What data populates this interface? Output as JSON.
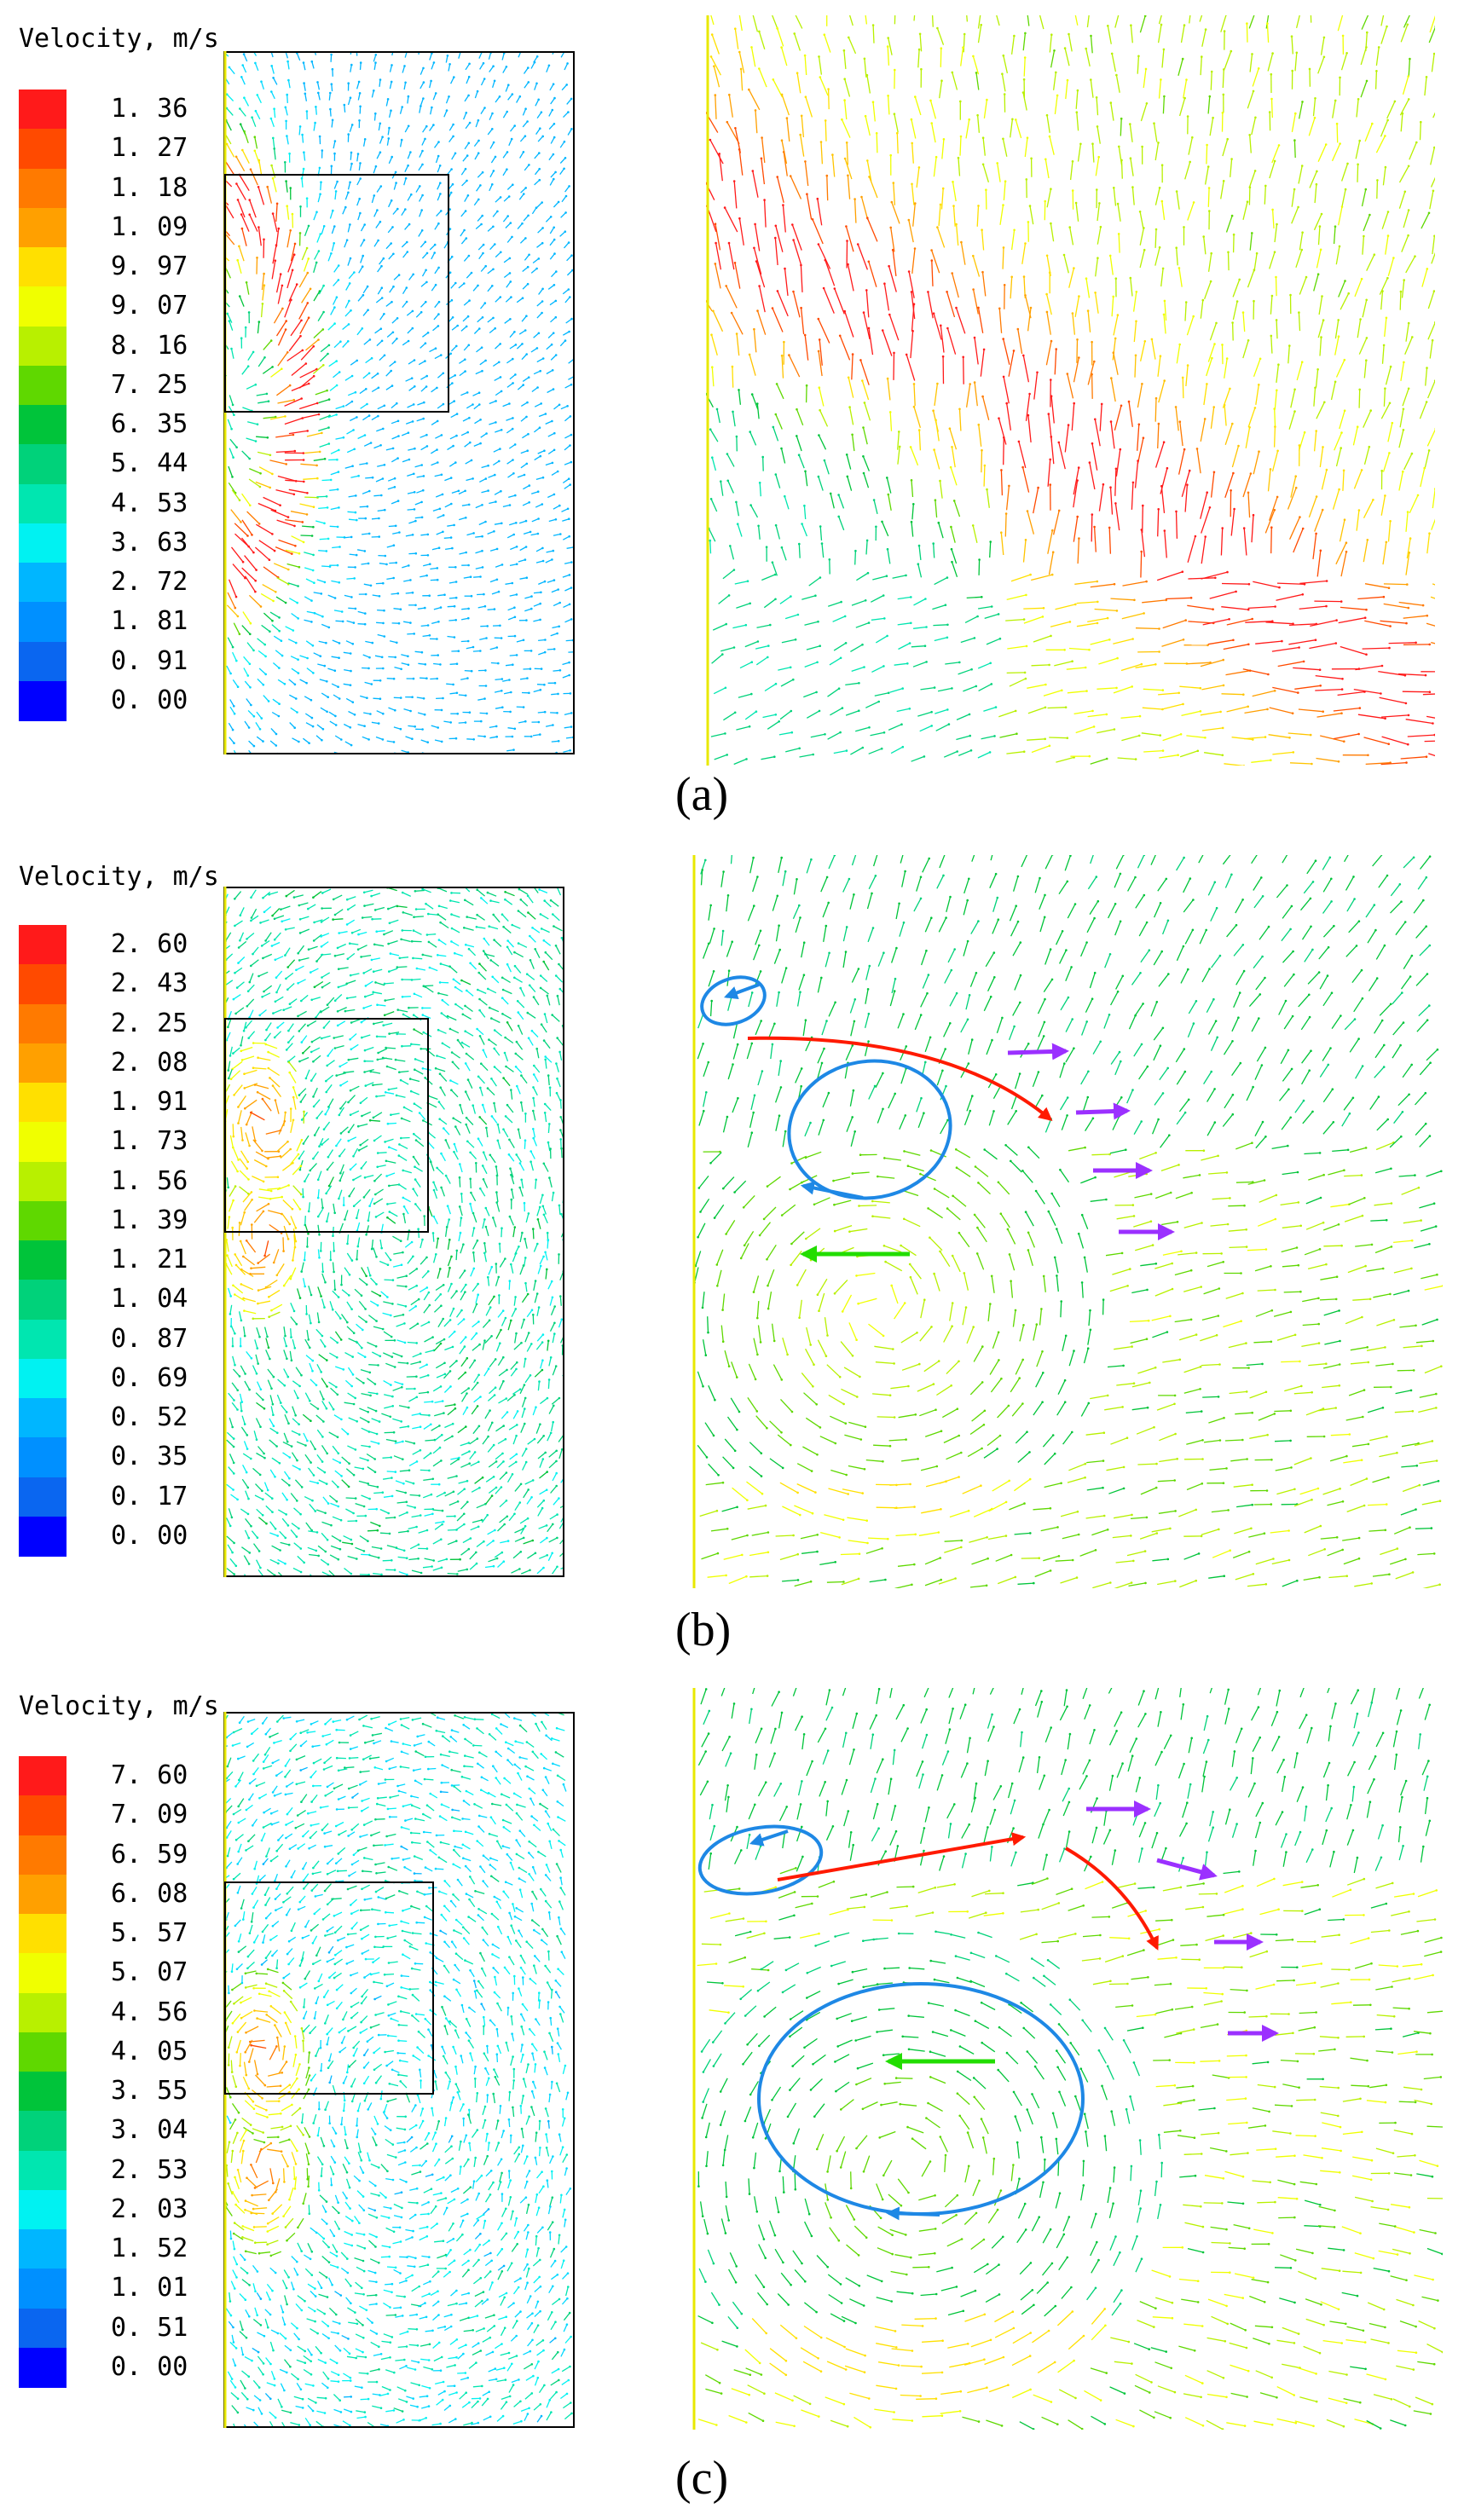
{
  "colors": {
    "scale": [
      "#0000ff",
      "#0a66f0",
      "#0090ff",
      "#00b6ff",
      "#00d8ff",
      "#00f2f2",
      "#00e6b0",
      "#00d27a",
      "#00c43a",
      "#5fd800",
      "#b8f000",
      "#f0ff00",
      "#ffe000",
      "#ffc400",
      "#ffa000",
      "#ff7a00",
      "#ff4a00",
      "#ff1a1a"
    ],
    "frame": "#000000",
    "wall": "#e8e800",
    "eddy_blue": "#1e88e5",
    "jet_red": "#ff1a00",
    "out_purple": "#9b30ff",
    "return_green": "#22dd00"
  },
  "panels": [
    {
      "id": "a",
      "label": "(a)",
      "legend_title": "Velocity, m/s",
      "ticks": [
        "1. 36",
        "1. 27",
        "1. 18",
        "1. 09",
        "9. 97",
        "9. 07",
        "8. 16",
        "7. 25",
        "6. 35",
        "5. 44",
        "4. 53",
        "3. 63",
        "2. 72",
        "1. 81",
        "0. 91",
        "0. 00"
      ]
    },
    {
      "id": "b",
      "label": "(b)",
      "legend_title": "Velocity, m/s",
      "ticks": [
        "2. 60",
        "2. 43",
        "2. 25",
        "2. 08",
        "1. 91",
        "1. 73",
        "1. 56",
        "1. 39",
        "1. 21",
        "1. 04",
        "0. 87",
        "0. 69",
        "0. 52",
        "0. 35",
        "0. 17",
        "0. 00"
      ]
    },
    {
      "id": "c",
      "label": "(c)",
      "legend_title": "Velocity, m/s",
      "ticks": [
        "7. 60",
        "7. 09",
        "6. 59",
        "6. 08",
        "5. 57",
        "5. 07",
        "4. 56",
        "4. 05",
        "3. 55",
        "3. 04",
        "2. 53",
        "2. 03",
        "1. 52",
        "1. 01",
        "0. 51",
        "0. 00"
      ]
    }
  ]
}
